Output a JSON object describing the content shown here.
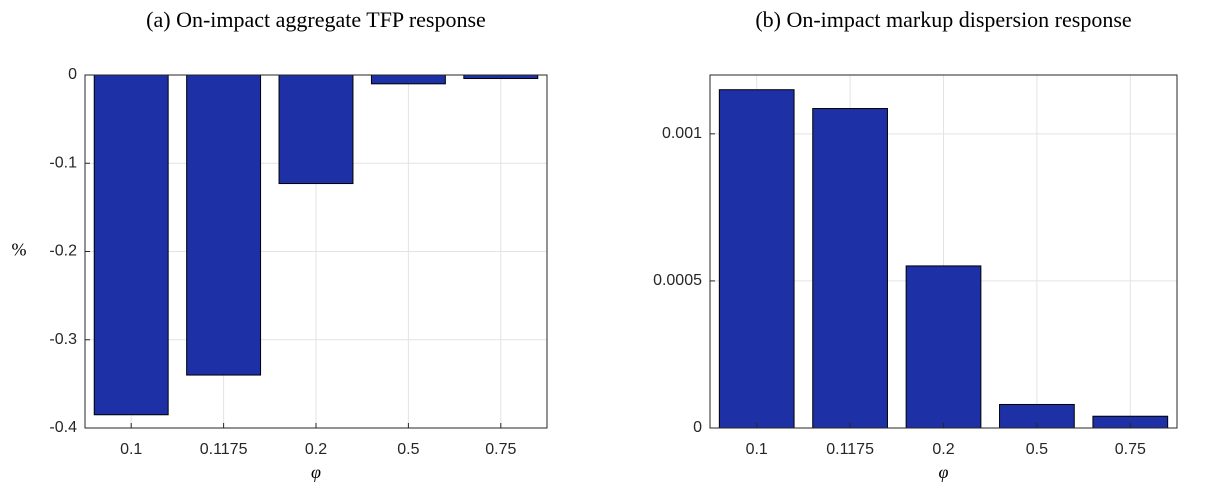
{
  "chart_data": [
    {
      "type": "bar",
      "title": "(a) On-impact aggregate TFP response",
      "xlabel": "φ",
      "ylabel": "%",
      "categories": [
        "0.1",
        "0.1175",
        "0.2",
        "0.5",
        "0.75"
      ],
      "values": [
        -0.385,
        -0.34,
        -0.123,
        -0.01,
        -0.004
      ],
      "color": "#1d30a6",
      "ylim": [
        -0.4,
        0
      ],
      "yticks": [
        -0.4,
        -0.3,
        -0.2,
        -0.1,
        0
      ],
      "grid": true
    },
    {
      "type": "bar",
      "title": "(b) On-impact markup dispersion response",
      "xlabel": "φ",
      "categories": [
        "0.1",
        "0.1175",
        "0.2",
        "0.5",
        "0.75"
      ],
      "values": [
        0.00115,
        0.001086,
        0.000551,
        8e-05,
        4e-05
      ],
      "color": "#1d30a6",
      "ylim": [
        0,
        0.0012
      ],
      "yticks": [
        0,
        0.0005,
        0.001
      ],
      "grid": true
    }
  ]
}
